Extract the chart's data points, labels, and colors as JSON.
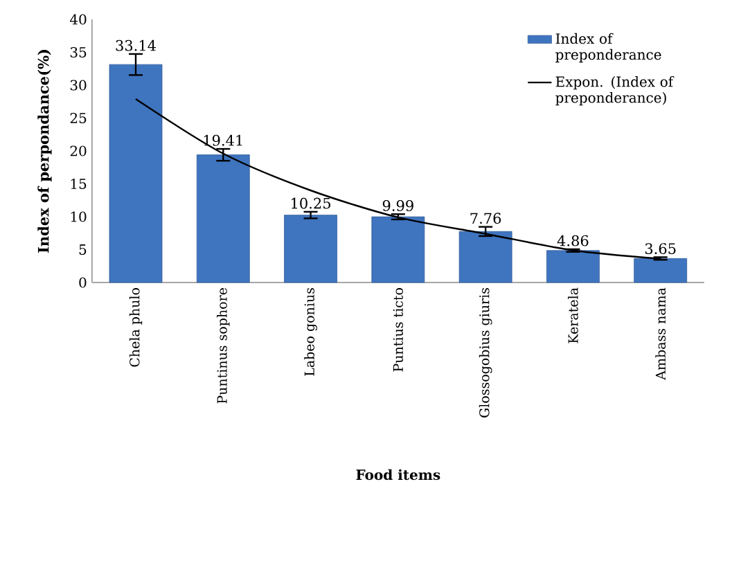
{
  "chart_data": {
    "type": "bar",
    "xlabel": "Food items",
    "ylabel": "Index of perpondance(%)",
    "categories": [
      "Chela phulo",
      "Puntinus sophore",
      "Labeo gonius",
      "Puntius ticto",
      "Glossogobius giuris",
      "Keratela",
      "Ambass nama"
    ],
    "ylim": [
      0,
      40
    ],
    "yticks": [
      0,
      5,
      10,
      15,
      20,
      25,
      30,
      35,
      40
    ],
    "legend": "top right",
    "series": [
      {
        "name": "Index of preponderance",
        "color": "#3f74bf",
        "values": [
          33.14,
          19.41,
          10.25,
          9.99,
          7.76,
          4.86,
          3.65
        ],
        "errors": [
          1.6,
          0.9,
          0.5,
          0.4,
          0.7,
          0.2,
          0.2
        ],
        "value_labels": [
          "33.14",
          "19.41",
          "10.25",
          "9.99",
          "7.76",
          "4.86",
          "3.65"
        ]
      },
      {
        "name": "Expon. (Index of preponderance)",
        "type": "line",
        "color": "#000000",
        "values": [
          27.9,
          19.6,
          14.0,
          9.9,
          7.4,
          4.9,
          3.6
        ]
      }
    ]
  }
}
